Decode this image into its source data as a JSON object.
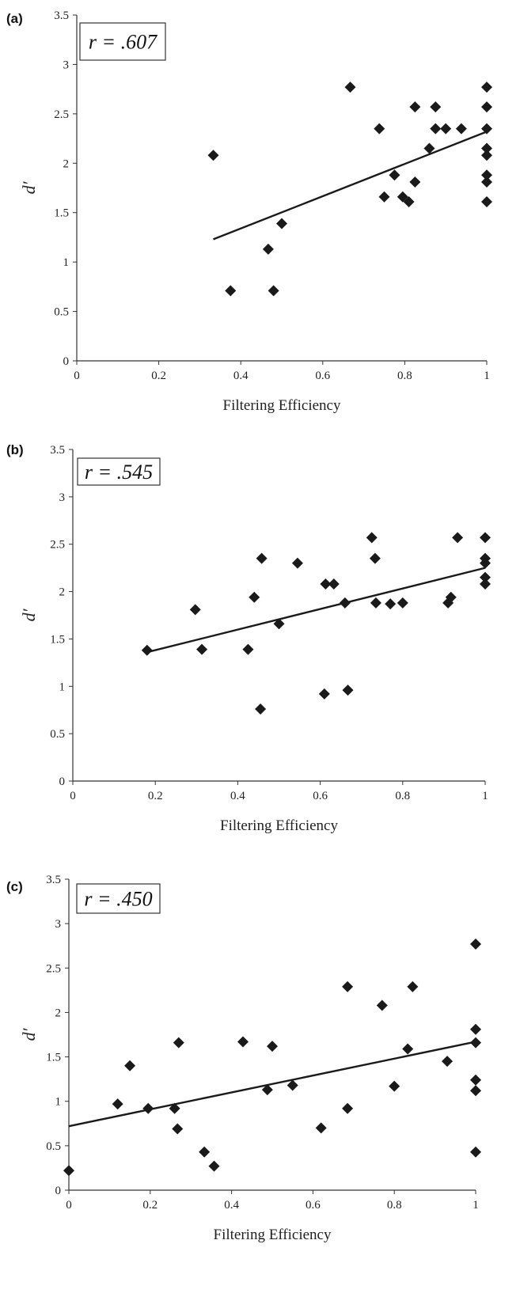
{
  "chart_data": [
    {
      "type": "scatter",
      "panel_label": "(a)",
      "r_text": "r = .607",
      "xlabel": "Filtering Efficiency",
      "ylabel": "d′",
      "xlim": [
        0,
        1
      ],
      "ylim": [
        0,
        3.5
      ],
      "xticks": [
        "0",
        "0.2",
        "0.4",
        "0.6",
        "0.8",
        "1"
      ],
      "yticks": [
        "0",
        "0.5",
        "1",
        "1.5",
        "2",
        "2.5",
        "3",
        "3.5"
      ],
      "points": [
        [
          0.333,
          2.08
        ],
        [
          0.375,
          0.71
        ],
        [
          0.467,
          1.13
        ],
        [
          0.48,
          0.71
        ],
        [
          0.5,
          1.39
        ],
        [
          0.667,
          2.77
        ],
        [
          0.738,
          2.35
        ],
        [
          0.75,
          1.66
        ],
        [
          0.775,
          1.88
        ],
        [
          0.795,
          1.66
        ],
        [
          0.81,
          1.61
        ],
        [
          0.825,
          2.57
        ],
        [
          0.825,
          1.81
        ],
        [
          0.86,
          2.15
        ],
        [
          0.875,
          2.57
        ],
        [
          0.875,
          2.35
        ],
        [
          0.9,
          2.35
        ],
        [
          0.938,
          2.35
        ],
        [
          1.0,
          2.77
        ],
        [
          1.0,
          2.57
        ],
        [
          1.0,
          2.35
        ],
        [
          1.0,
          2.15
        ],
        [
          1.0,
          2.08
        ],
        [
          1.0,
          1.88
        ],
        [
          1.0,
          1.81
        ],
        [
          1.0,
          1.61
        ]
      ],
      "fit": [
        [
          0.333,
          1.23
        ],
        [
          1.0,
          2.32
        ]
      ]
    },
    {
      "type": "scatter",
      "panel_label": "(b)",
      "r_text": "r = .545",
      "xlabel": "Filtering Efficiency",
      "ylabel": "d′",
      "xlim": [
        0,
        1
      ],
      "ylim": [
        0,
        3.5
      ],
      "xticks": [
        "0",
        "0.2",
        "0.4",
        "0.6",
        "0.8",
        "1"
      ],
      "yticks": [
        "0",
        "0.5",
        "1",
        "1.5",
        "2",
        "2.5",
        "3",
        "3.5"
      ],
      "points": [
        [
          0.18,
          1.38
        ],
        [
          0.297,
          1.81
        ],
        [
          0.313,
          1.39
        ],
        [
          0.425,
          1.39
        ],
        [
          0.44,
          1.94
        ],
        [
          0.455,
          0.76
        ],
        [
          0.458,
          2.35
        ],
        [
          0.5,
          1.66
        ],
        [
          0.545,
          2.3
        ],
        [
          0.61,
          0.92
        ],
        [
          0.613,
          2.08
        ],
        [
          0.633,
          2.08
        ],
        [
          0.66,
          1.88
        ],
        [
          0.667,
          0.96
        ],
        [
          0.725,
          2.57
        ],
        [
          0.733,
          2.35
        ],
        [
          0.735,
          1.88
        ],
        [
          0.77,
          1.87
        ],
        [
          0.8,
          1.88
        ],
        [
          0.91,
          1.88
        ],
        [
          0.917,
          1.94
        ],
        [
          0.933,
          2.57
        ],
        [
          1.0,
          2.57
        ],
        [
          1.0,
          2.35
        ],
        [
          1.0,
          2.3
        ],
        [
          1.0,
          2.15
        ],
        [
          1.0,
          2.08
        ]
      ],
      "fit": [
        [
          0.18,
          1.36
        ],
        [
          1.0,
          2.25
        ]
      ]
    },
    {
      "type": "scatter",
      "panel_label": "(c)",
      "r_text": "r = .450",
      "xlabel": "Filtering Efficiency",
      "ylabel": "d′",
      "xlim": [
        0,
        1
      ],
      "ylim": [
        0,
        3.5
      ],
      "xticks": [
        "0",
        "0.2",
        "0.4",
        "0.6",
        "0.8",
        "1"
      ],
      "yticks": [
        "0",
        "0.5",
        "1",
        "1.5",
        "2",
        "2.5",
        "3",
        "3.5"
      ],
      "points": [
        [
          0.0,
          0.22
        ],
        [
          0.12,
          0.97
        ],
        [
          0.15,
          1.4
        ],
        [
          0.195,
          0.92
        ],
        [
          0.26,
          0.92
        ],
        [
          0.267,
          0.69
        ],
        [
          0.27,
          1.66
        ],
        [
          0.333,
          0.43
        ],
        [
          0.357,
          0.27
        ],
        [
          0.428,
          1.67
        ],
        [
          0.488,
          1.13
        ],
        [
          0.5,
          1.62
        ],
        [
          0.55,
          1.18
        ],
        [
          0.62,
          0.7
        ],
        [
          0.685,
          2.29
        ],
        [
          0.685,
          0.92
        ],
        [
          0.77,
          2.08
        ],
        [
          0.8,
          1.17
        ],
        [
          0.833,
          1.59
        ],
        [
          0.845,
          2.29
        ],
        [
          0.93,
          1.45
        ],
        [
          1.0,
          2.77
        ],
        [
          1.0,
          1.81
        ],
        [
          1.0,
          1.66
        ],
        [
          1.0,
          1.24
        ],
        [
          1.0,
          1.12
        ],
        [
          1.0,
          0.43
        ]
      ],
      "fit": [
        [
          0.0,
          0.72
        ],
        [
          1.0,
          1.67
        ]
      ]
    }
  ]
}
